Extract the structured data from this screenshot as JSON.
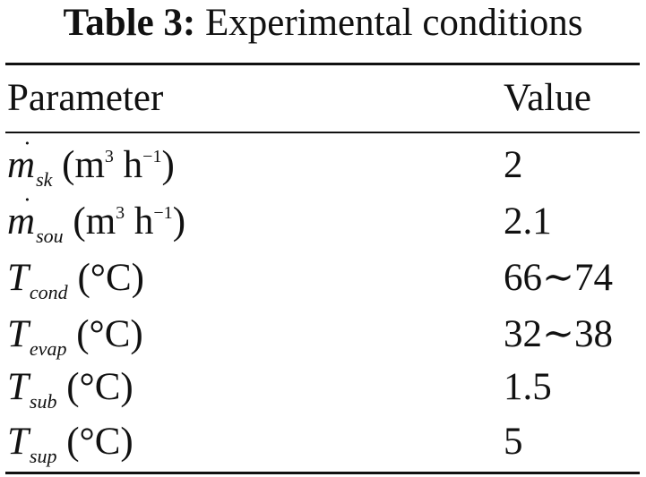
{
  "caption": {
    "label": "Table 3:",
    "text": "Experimental conditions"
  },
  "header": {
    "col1": "Parameter",
    "col2": "Value"
  },
  "rows": [
    {
      "symbol": "m",
      "dot": "˙",
      "sub": "sk",
      "unit_open": "(m",
      "sup1": "3",
      "unit_mid": " h",
      "sup2": "−1",
      "unit_close": ")",
      "value": "2"
    },
    {
      "symbol": "m",
      "dot": "˙",
      "sub": "sou",
      "unit_open": "(m",
      "sup1": "3",
      "unit_mid": " h",
      "sup2": "−1",
      "unit_close": ")",
      "value": "2.1"
    },
    {
      "symbol": "T",
      "sub": "cond",
      "unit": "(°C)",
      "value": "66∼74"
    },
    {
      "symbol": "T",
      "sub": "evap",
      "unit": "(°C)",
      "value": "32∼38"
    },
    {
      "symbol": "T",
      "sub": "sub",
      "unit": "(°C)",
      "value": "1.5"
    },
    {
      "symbol": "T",
      "sub": "sup",
      "unit": "(°C)",
      "value": "5"
    }
  ]
}
